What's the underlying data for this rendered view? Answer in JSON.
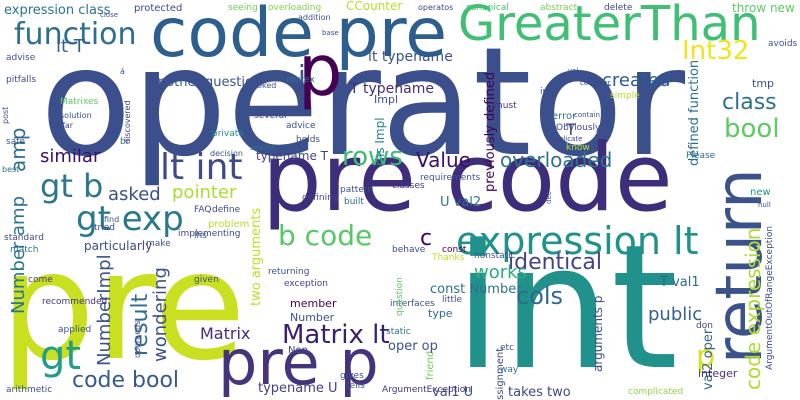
{
  "words": [
    {
      "text": "operator",
      "color": "#3b4f8c"
    },
    {
      "text": "pre code",
      "color": "#3d2d7a"
    },
    {
      "text": "int",
      "color": "#21918c"
    },
    {
      "text": "pre",
      "color": "#c8e020"
    },
    {
      "text": "code pre",
      "color": "#2c5f8e"
    },
    {
      "text": "GreaterThan",
      "color": "#3fbf74"
    },
    {
      "text": "return",
      "color": "#3b528b"
    },
    {
      "text": "p",
      "color": "#440154"
    },
    {
      "text": "pre p",
      "color": "#46337e"
    },
    {
      "text": "expression lt",
      "color": "#21918c"
    },
    {
      "text": "function",
      "color": "#2e6f8e"
    },
    {
      "text": "lt int",
      "color": "#3e4a89"
    },
    {
      "text": "gt b",
      "color": "#2b778e"
    },
    {
      "text": "gt exp",
      "color": "#2a788e"
    },
    {
      "text": "gt",
      "color": "#1f9e89"
    },
    {
      "text": "rows",
      "color": "#3fbc73"
    },
    {
      "text": "b code",
      "color": "#58c765"
    },
    {
      "text": "bool",
      "color": "#5ec962"
    },
    {
      "text": "Int32",
      "color": "#f0e51c"
    },
    {
      "text": "class",
      "color": "#2c728e"
    },
    {
      "text": "code expression",
      "color": "#addc30"
    },
    {
      "text": "Matrix lt",
      "color": "#3b1f6e"
    },
    {
      "text": "code bool",
      "color": "#38598c"
    },
    {
      "text": "p",
      "color": "#d8e219"
    },
    {
      "text": "cols",
      "color": "#31688e"
    },
    {
      "text": "identical",
      "color": "#414487"
    },
    {
      "text": "overloaded",
      "color": "#2c738e"
    },
    {
      "text": "Value",
      "color": "#3b0f70"
    },
    {
      "text": "result",
      "color": "#2f6c8e"
    },
    {
      "text": "works",
      "color": "#29af7f"
    },
    {
      "text": "c",
      "color": "#440154"
    },
    {
      "text": "public",
      "color": "#33638d"
    },
    {
      "text": "pointer",
      "color": "#aadc32"
    },
    {
      "text": "asked",
      "color": "#3c4f8a"
    },
    {
      "text": "similar",
      "color": "#3a0f6f"
    },
    {
      "text": "created",
      "color": "#2a5d8e"
    },
    {
      "text": "lt T",
      "color": "#355f8d"
    },
    {
      "text": "j",
      "color": "#3e4989"
    },
    {
      "text": "amp",
      "color": "#2e6e8e"
    },
    {
      "text": "Number amp",
      "color": "#2a768e"
    },
    {
      "text": "NumberImpl",
      "color": "#39558c"
    },
    {
      "text": "wondering",
      "color": "#3b518b"
    },
    {
      "text": "Matrix",
      "color": "#482878"
    },
    {
      "text": "typename T",
      "color": "#414487"
    },
    {
      "text": "T typename",
      "color": "#472d7b"
    },
    {
      "text": "lt typename",
      "color": "#3a538b"
    },
    {
      "text": "another question",
      "color": "#3b528b"
    },
    {
      "text": "U val2",
      "color": "#2d708e"
    },
    {
      "text": "rhs Impl",
      "color": "#26828e"
    },
    {
      "text": "const Number",
      "color": "#2c728e"
    },
    {
      "text": "T val1",
      "color": "#31688e"
    },
    {
      "text": "takes two",
      "color": "#404688"
    },
    {
      "text": "val1 U",
      "color": "#3b528b"
    },
    {
      "text": "typename U",
      "color": "#433e85"
    },
    {
      "text": "arguments p",
      "color": "#3e4a89"
    },
    {
      "text": "val2 oper",
      "color": "#33638d"
    },
    {
      "text": "expression class",
      "color": "#2c728e"
    },
    {
      "text": "protected",
      "color": "#3e4a89"
    },
    {
      "text": "seeing",
      "color": "#6ece58"
    },
    {
      "text": "overloading",
      "color": "#7fd34e"
    },
    {
      "text": "CCounter",
      "color": "#b5de2b"
    },
    {
      "text": "canonical",
      "color": "#4ac16d"
    },
    {
      "text": "abstract",
      "color": "#7ad151"
    },
    {
      "text": "delete",
      "color": "#3e4a89"
    },
    {
      "text": "throw new",
      "color": "#5ec962"
    },
    {
      "text": "avoids",
      "color": "#3b528b"
    },
    {
      "text": "previously defined",
      "color": "#440154"
    },
    {
      "text": "defined function",
      "color": "#2e6f8e"
    },
    {
      "text": "two arguments",
      "color": "#bddf26"
    },
    {
      "text": "particularly",
      "color": "#3e4a89"
    },
    {
      "text": "Impl",
      "color": "#3b528b"
    },
    {
      "text": "error",
      "color": "#2c728e"
    },
    {
      "text": "Obviously",
      "color": "#414487"
    },
    {
      "text": "integer",
      "color": "#46337e"
    },
    {
      "text": "Please",
      "color": "#2d708e"
    },
    {
      "text": "new",
      "color": "#21918c"
    },
    {
      "text": "mutex",
      "color": "#2c728e"
    },
    {
      "text": "friend",
      "color": "#6ece58"
    },
    {
      "text": "Number",
      "color": "#3b528b"
    },
    {
      "text": "member",
      "color": "#440154"
    },
    {
      "text": "Non",
      "color": "#3e4a89"
    },
    {
      "text": "exception",
      "color": "#414487"
    },
    {
      "text": "returning",
      "color": "#3b528b"
    },
    {
      "text": "oper op",
      "color": "#3b528b"
    },
    {
      "text": "type",
      "color": "#31688e"
    },
    {
      "text": "static",
      "color": "#2c728e"
    },
    {
      "text": "assignment",
      "color": "#3e4a89"
    },
    {
      "text": "complicated",
      "color": "#8fd744"
    },
    {
      "text": "advise",
      "color": "#3b528b"
    },
    {
      "text": "pitfalls",
      "color": "#3e4a89"
    },
    {
      "text": "Matrixes",
      "color": "#5ec962"
    },
    {
      "text": "safe",
      "color": "#3b528b"
    },
    {
      "text": "br",
      "color": "#2c728e"
    },
    {
      "text": "private",
      "color": "#21918c"
    },
    {
      "text": "several",
      "color": "#414487"
    },
    {
      "text": "advice",
      "color": "#3b528b"
    },
    {
      "text": "standard",
      "color": "#3e4a89"
    },
    {
      "text": "match",
      "color": "#2c728e"
    },
    {
      "text": "come",
      "color": "#46337e"
    },
    {
      "text": "arithmetic",
      "color": "#3b528b"
    },
    {
      "text": "FAQ",
      "color": "#414487"
    },
    {
      "text": "define",
      "color": "#3e4a89"
    },
    {
      "text": "problem",
      "color": "#b5de2b"
    },
    {
      "text": "implementing",
      "color": "#3e4a89"
    },
    {
      "text": "make",
      "color": "#3b528b"
    },
    {
      "text": "given",
      "color": "#3b528b"
    },
    {
      "text": "pattern",
      "color": "#3b528b"
    },
    {
      "text": "built",
      "color": "#2c728e"
    },
    {
      "text": "defining",
      "color": "#414487"
    },
    {
      "text": "classes",
      "color": "#46337e"
    },
    {
      "text": "behave",
      "color": "#3e4a89"
    },
    {
      "text": "nonstatic",
      "color": "#3b528b"
    },
    {
      "text": "const",
      "color": "#440154"
    },
    {
      "text": "little",
      "color": "#3e4a89"
    },
    {
      "text": "interfaces",
      "color": "#3b528b"
    },
    {
      "text": "ArgumentException",
      "color": "#46337e"
    },
    {
      "text": "ArgumentOutOfRangeException",
      "color": "#3e4a89"
    },
    {
      "text": "way",
      "color": "#2c728e"
    },
    {
      "text": "etc",
      "color": "#3b528b"
    },
    {
      "text": "don",
      "color": "#414487"
    },
    {
      "text": "gives",
      "color": "#3e4a89"
    },
    {
      "text": "tells",
      "color": "#3b528b"
    },
    {
      "text": "Thanks",
      "color": "#c2df23"
    },
    {
      "text": "question",
      "color": "#5ec962"
    },
    {
      "text": "requirements",
      "color": "#3b528b"
    },
    {
      "text": "tried",
      "color": "#3e4a89"
    },
    {
      "text": "recommended",
      "color": "#46337e"
    },
    {
      "text": "applied",
      "color": "#3b528b"
    },
    {
      "text": "operands",
      "color": "#414487"
    },
    {
      "text": "holds",
      "color": "#3e4a89"
    },
    {
      "text": "looked",
      "color": "#3b528b"
    },
    {
      "text": "seems",
      "color": "#2c728e"
    },
    {
      "text": "decision",
      "color": "#3b528b"
    },
    {
      "text": "discovered",
      "color": "#414487"
    },
    {
      "text": "solution",
      "color": "#3b528b"
    },
    {
      "text": "far",
      "color": "#3e4a89"
    },
    {
      "text": "post",
      "color": "#3b528b"
    },
    {
      "text": "best",
      "color": "#2c728e"
    },
    {
      "text": "find",
      "color": "#3b528b"
    },
    {
      "text": "lhs",
      "color": "#3b528b"
    },
    {
      "text": "must",
      "color": "#46337e"
    },
    {
      "text": "inc",
      "color": "#3b528b"
    },
    {
      "text": "compiler",
      "color": "#3e4a89"
    },
    {
      "text": "simple",
      "color": "#b5de2b"
    },
    {
      "text": "contain",
      "color": "#3b528b"
    },
    {
      "text": "know",
      "color": "#b5de2b"
    },
    {
      "text": "tmp",
      "color": "#3b528b"
    },
    {
      "text": "duplicate",
      "color": "#3e4a89"
    },
    {
      "text": "addition",
      "color": "#3b528b"
    },
    {
      "text": "base",
      "color": "#3e4a89"
    },
    {
      "text": "close",
      "color": "#3b528b"
    },
    {
      "text": "operatos",
      "color": "#3e4a89"
    },
    {
      "text": "null",
      "color": "#3b528b"
    },
    {
      "text": "dec",
      "color": "#3b528b"
    },
    {
      "text": "val",
      "color": "#3e4a89"
    },
    {
      "text": "T'",
      "color": "#3b528b"
    },
    {
      "text": "T",
      "color": "#414487"
    },
    {
      "text": "á",
      "color": "#3b528b"
    }
  ]
}
